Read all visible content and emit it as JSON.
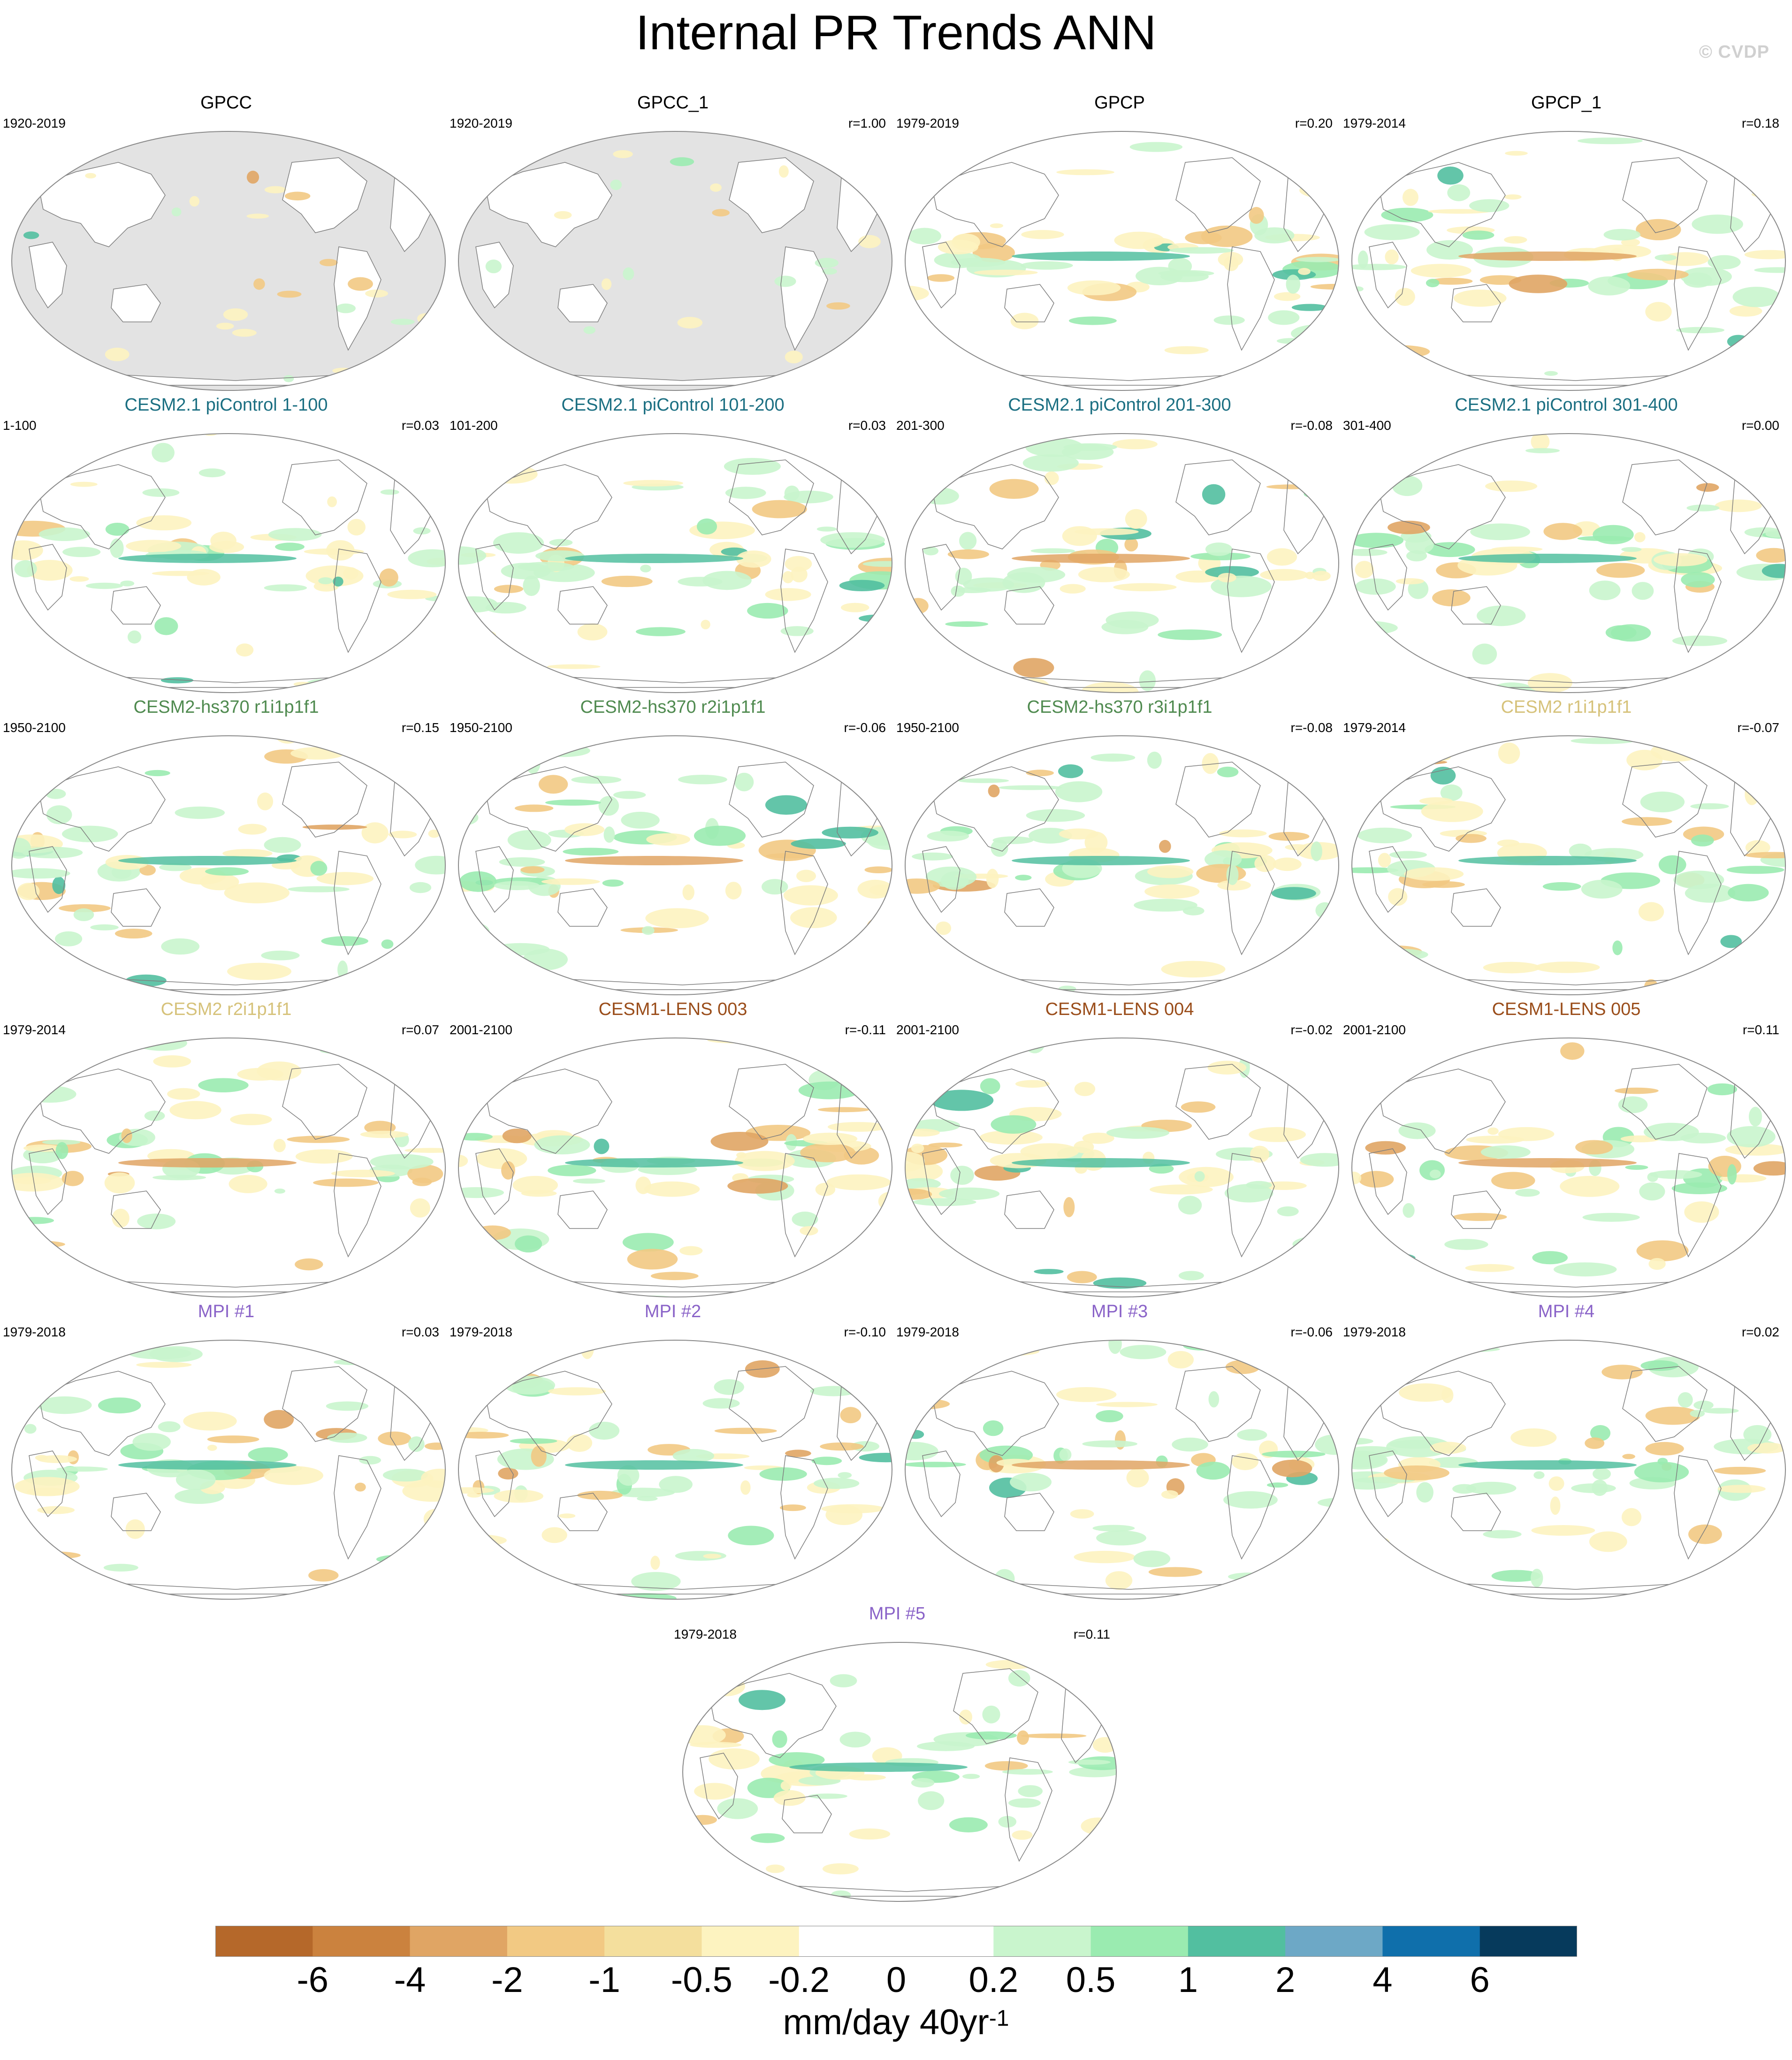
{
  "title": "Internal PR Trends ANN",
  "credit": "© CVDP",
  "colors": {
    "ocean_mask": "#e3e3e3",
    "land_outline": "#7f7f7f",
    "globe_outline": "#8a8a8a",
    "title_obs": "#000000",
    "title_piControl": "#1b6f82",
    "title_hs370": "#4f8a4f",
    "title_cesm2": "#d6c27a",
    "title_lens": "#9a4d1a",
    "title_mpi": "#8a63c8"
  },
  "panels": [
    {
      "title": "GPCC",
      "period": "1920-2019",
      "r": "",
      "group": "obs",
      "ocean_masked": true
    },
    {
      "title": "GPCC_1",
      "period": "1920-2019",
      "r": "r=1.00",
      "group": "obs",
      "ocean_masked": true
    },
    {
      "title": "GPCP",
      "period": "1979-2019",
      "r": "r=0.20",
      "group": "obs",
      "ocean_masked": false
    },
    {
      "title": "GPCP_1",
      "period": "1979-2014",
      "r": "r=0.18",
      "group": "obs",
      "ocean_masked": false
    },
    {
      "title": "CESM2.1 piControl 1-100",
      "period": "1-100",
      "r": "r=0.03",
      "group": "piControl",
      "ocean_masked": false
    },
    {
      "title": "CESM2.1 piControl 101-200",
      "period": "101-200",
      "r": "r=0.03",
      "group": "piControl",
      "ocean_masked": false
    },
    {
      "title": "CESM2.1 piControl 201-300",
      "period": "201-300",
      "r": "r=-0.08",
      "group": "piControl",
      "ocean_masked": false
    },
    {
      "title": "CESM2.1 piControl 301-400",
      "period": "301-400",
      "r": "r=0.00",
      "group": "piControl",
      "ocean_masked": false
    },
    {
      "title": "CESM2-hs370 r1i1p1f1",
      "period": "1950-2100",
      "r": "r=0.15",
      "group": "hs370",
      "ocean_masked": false
    },
    {
      "title": "CESM2-hs370 r2i1p1f1",
      "period": "1950-2100",
      "r": "r=-0.06",
      "group": "hs370",
      "ocean_masked": false
    },
    {
      "title": "CESM2-hs370 r3i1p1f1",
      "period": "1950-2100",
      "r": "r=-0.08",
      "group": "hs370",
      "ocean_masked": false
    },
    {
      "title": "CESM2 r1i1p1f1",
      "period": "1979-2014",
      "r": "r=-0.07",
      "group": "cesm2",
      "ocean_masked": false
    },
    {
      "title": "CESM2 r2i1p1f1",
      "period": "1979-2014",
      "r": "r=0.07",
      "group": "cesm2",
      "ocean_masked": false
    },
    {
      "title": "CESM1-LENS 003",
      "period": "2001-2100",
      "r": "r=-0.11",
      "group": "lens",
      "ocean_masked": false
    },
    {
      "title": "CESM1-LENS 004",
      "period": "2001-2100",
      "r": "r=-0.02",
      "group": "lens",
      "ocean_masked": false
    },
    {
      "title": "CESM1-LENS 005",
      "period": "2001-2100",
      "r": "r=0.11",
      "group": "lens",
      "ocean_masked": false
    },
    {
      "title": "MPI #1",
      "period": "1979-2018",
      "r": "r=0.03",
      "group": "mpi",
      "ocean_masked": false
    },
    {
      "title": "MPI #2",
      "period": "1979-2018",
      "r": "r=-0.10",
      "group": "mpi",
      "ocean_masked": false
    },
    {
      "title": "MPI #3",
      "period": "1979-2018",
      "r": "r=-0.06",
      "group": "mpi",
      "ocean_masked": false
    },
    {
      "title": "MPI #4",
      "period": "1979-2018",
      "r": "r=0.02",
      "group": "mpi",
      "ocean_masked": false
    },
    {
      "title": "MPI #5",
      "period": "1979-2018",
      "r": "r=0.11",
      "group": "mpi",
      "ocean_masked": false
    }
  ],
  "colorbar": {
    "colors": [
      "#b5682a",
      "#cb823e",
      "#e0a564",
      "#f2c983",
      "#f4df9d",
      "#fdf3c0",
      "#ffffff",
      "#ffffff",
      "#c9f5cd",
      "#9aebb0",
      "#52bfa0",
      "#6da8c6",
      "#0f6fab",
      "#063a5c"
    ],
    "tick_labels": [
      "-6",
      "-4",
      "-2",
      "-1",
      "-0.5",
      "-0.2",
      "0",
      "0.2",
      "0.5",
      "1",
      "2",
      "4",
      "6"
    ],
    "units": "mm/day 40yr",
    "units_exponent": "-1"
  }
}
